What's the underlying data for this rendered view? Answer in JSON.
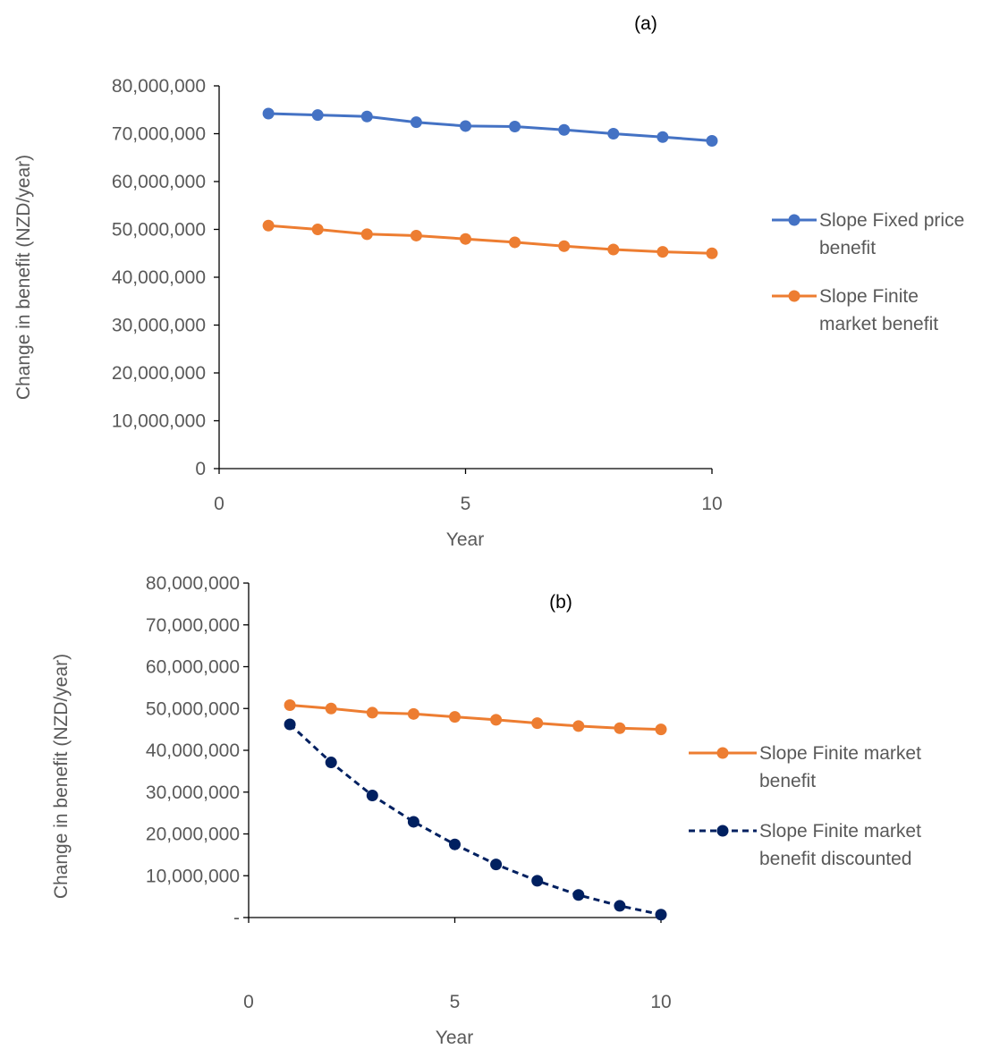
{
  "chart_data": [
    {
      "type": "line",
      "panel_label": "(a)",
      "xlabel": "Year",
      "ylabel": "Change in benefit (NZD/year)",
      "xlim": [
        0,
        10
      ],
      "ylim": [
        0,
        80000000
      ],
      "x_ticks": [
        "0",
        "5",
        "10"
      ],
      "y_ticks": [
        "0",
        "10,000,000",
        "20,000,000",
        "30,000,000",
        "40,000,000",
        "50,000,000",
        "60,000,000",
        "70,000,000",
        "80,000,000"
      ],
      "legend_position": "right",
      "grid": false,
      "x": [
        1,
        2,
        3,
        4,
        5,
        6,
        7,
        8,
        9,
        10
      ],
      "series": [
        {
          "name": "Slope Fixed price benefit",
          "legend_lines": [
            "Slope Fixed price",
            "benefit"
          ],
          "color": "#4472C4",
          "dashed": false,
          "values": [
            74200000,
            73900000,
            73600000,
            72400000,
            71600000,
            71500000,
            70800000,
            70000000,
            69300000,
            68500000
          ]
        },
        {
          "name": "Slope Finite market benefit",
          "legend_lines": [
            "Slope Finite",
            "market benefit"
          ],
          "color": "#ED7D31",
          "dashed": false,
          "values": [
            50800000,
            50000000,
            49000000,
            48700000,
            48000000,
            47300000,
            46500000,
            45800000,
            45300000,
            45000000
          ]
        }
      ]
    },
    {
      "type": "line",
      "panel_label": "(b)",
      "xlabel": "Year",
      "ylabel": "Change in benefit (NZD/year)",
      "xlim": [
        0,
        10
      ],
      "ylim": [
        0,
        80000000
      ],
      "x_ticks": [
        "0",
        "5",
        "10"
      ],
      "y_ticks": [
        "-",
        "10,000,000",
        "20,000,000",
        "30,000,000",
        "40,000,000",
        "50,000,000",
        "60,000,000",
        "70,000,000",
        "80,000,000"
      ],
      "legend_position": "right",
      "grid": false,
      "x": [
        1,
        2,
        3,
        4,
        5,
        6,
        7,
        8,
        9,
        10
      ],
      "series": [
        {
          "name": "Slope Finite market benefit",
          "legend_lines": [
            "Slope Finite market",
            "benefit"
          ],
          "color": "#ED7D31",
          "dashed": false,
          "values": [
            50800000,
            50000000,
            49000000,
            48700000,
            48000000,
            47300000,
            46500000,
            45800000,
            45300000,
            45000000
          ]
        },
        {
          "name": "Slope Finite market benefit discounted",
          "legend_lines": [
            "Slope Finite market",
            "benefit discounted"
          ],
          "color": "#002060",
          "dashed": true,
          "values": [
            46200000,
            37100000,
            29200000,
            22900000,
            17500000,
            12700000,
            8800000,
            5400000,
            2800000,
            700000
          ]
        }
      ]
    }
  ]
}
